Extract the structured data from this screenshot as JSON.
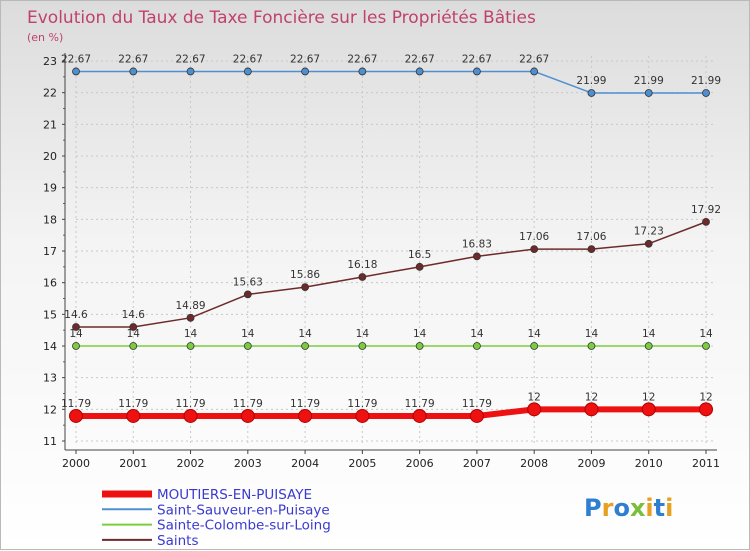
{
  "header": {
    "title": "Evolution du Taux de Taxe Foncière sur les Propriétés Bâties",
    "subtitle": "(en %)"
  },
  "logo": {
    "text": "Proxiti"
  },
  "chart_data": {
    "type": "line",
    "categories": [
      "2000",
      "2001",
      "2002",
      "2003",
      "2004",
      "2005",
      "2006",
      "2007",
      "2008",
      "2009",
      "2010",
      "2011"
    ],
    "ylim": [
      11,
      23
    ],
    "yticks": [
      11,
      12,
      13,
      14,
      15,
      16,
      17,
      18,
      19,
      20,
      21,
      22,
      23
    ],
    "grid": true,
    "legend_position": "bottom-left",
    "series": [
      {
        "name": "MOUTIERS-EN-PUISAYE",
        "color": "#ee1111",
        "values": [
          11.79,
          11.79,
          11.79,
          11.79,
          11.79,
          11.79,
          11.79,
          11.79,
          12,
          12,
          12,
          12
        ],
        "labels": [
          "11.79",
          "11.79",
          "11.79",
          "11.79",
          "11.79",
          "11.79",
          "11.79",
          "11.79",
          "12",
          "12",
          "12",
          "12"
        ]
      },
      {
        "name": "Saint-Sauveur-en-Puisaye",
        "color": "#4f8fd0",
        "values": [
          22.67,
          22.67,
          22.67,
          22.67,
          22.67,
          22.67,
          22.67,
          22.67,
          22.67,
          21.99,
          21.99,
          21.99
        ],
        "labels": [
          "22.67",
          "22.67",
          "22.67",
          "22.67",
          "22.67",
          "22.67",
          "22.67",
          "22.67",
          "22.67",
          "21.99",
          "21.99",
          "21.99"
        ]
      },
      {
        "name": "Sainte-Colombe-sur-Loing",
        "color": "#7ccd3e",
        "values": [
          14,
          14,
          14,
          14,
          14,
          14,
          14,
          14,
          14,
          14,
          14,
          14
        ],
        "labels": [
          "14",
          "14",
          "14",
          "14",
          "14",
          "14",
          "14",
          "14",
          "14",
          "14",
          "14",
          "14"
        ]
      },
      {
        "name": "Saints",
        "color": "#6e2a2a",
        "values": [
          14.6,
          14.6,
          14.89,
          15.63,
          15.86,
          16.18,
          16.5,
          16.83,
          17.06,
          17.06,
          17.23,
          17.92
        ],
        "labels": [
          "14.6",
          "14.6",
          "14.89",
          "15.63",
          "15.86",
          "16.18",
          "16.5",
          "16.83",
          "17.06",
          "17.06",
          "17.23",
          "17.92"
        ]
      }
    ]
  }
}
